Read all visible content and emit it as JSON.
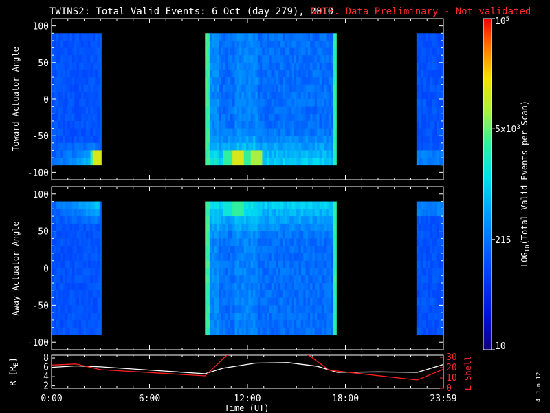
{
  "header": {
    "title": "TWINS2: Total Valid Events:  6 Oct (day 279), 2010",
    "note": "NOTE. Data Preliminary - Not validated"
  },
  "footer": {
    "date_stamp": "4 Jun 12"
  },
  "colors": {
    "background": "#000000",
    "axes": "#ffffff",
    "ephemeris_r": "#ffffff",
    "ephemeris_l": "#ff2020",
    "note_text": "#ff2a2a"
  },
  "chart_data": [
    {
      "type": "heatmap",
      "panel": "toward",
      "ylabel": "Toward Actuator Angle",
      "ylim": [
        -110,
        110
      ],
      "yticks": [
        "100",
        "50",
        "0",
        "-50",
        "-100"
      ],
      "xlim": [
        0,
        24
      ],
      "xticks": [
        "0:00",
        "6:00",
        "12:00",
        "18:00",
        "23:59"
      ],
      "angle_range": [
        -90,
        90
      ],
      "data_intervals": [
        {
          "start": 0.0,
          "end": 3.05,
          "flavor": "early"
        },
        {
          "start": 9.4,
          "end": 17.45,
          "flavor": "mid"
        },
        {
          "start": 22.35,
          "end": 24.0,
          "flavor": "late"
        }
      ],
      "hotspots": [
        {
          "time": 2.7,
          "angle": -85,
          "level": 0.62
        },
        {
          "time": 2.9,
          "angle": -85,
          "level": 0.78
        },
        {
          "time": 9.9,
          "angle": -80,
          "level": 0.5
        },
        {
          "time": 10.9,
          "angle": -80,
          "level": 0.62
        },
        {
          "time": 11.5,
          "angle": -83,
          "level": 0.78
        },
        {
          "time": 12.1,
          "angle": -80,
          "level": 0.62
        },
        {
          "time": 12.5,
          "angle": -85,
          "level": 0.72
        }
      ]
    },
    {
      "type": "heatmap",
      "panel": "away",
      "ylabel": "Away Actuator Angle",
      "ylim": [
        -110,
        110
      ],
      "yticks": [
        "100",
        "50",
        "0",
        "-50",
        "-100"
      ],
      "xlim": [
        0,
        24
      ],
      "xticks": [
        "0:00",
        "6:00",
        "12:00",
        "18:00",
        "23:59"
      ],
      "angle_range": [
        -90,
        90
      ],
      "data_intervals": [
        {
          "start": 0.0,
          "end": 3.05,
          "flavor": "early"
        },
        {
          "start": 9.4,
          "end": 17.45,
          "flavor": "mid"
        },
        {
          "start": 22.35,
          "end": 24.0,
          "flavor": "late"
        }
      ],
      "hotspots": [
        {
          "time": 10.9,
          "angle": 85,
          "level": 0.55
        },
        {
          "time": 11.5,
          "angle": 88,
          "level": 0.62
        },
        {
          "time": 12.2,
          "angle": 85,
          "level": 0.5
        },
        {
          "time": 10.2,
          "angle": 86,
          "level": 0.45
        }
      ]
    },
    {
      "type": "line",
      "panel": "ephemeris",
      "xlabel": "Time (UT)",
      "xlim": [
        0,
        24
      ],
      "xticks": [
        "0:00",
        "6:00",
        "12:00",
        "18:00",
        "23:59"
      ],
      "ylabel_left": "R [R",
      "ylabel_left_sub": "E",
      "ylabel_left_close": "]",
      "ylim_left": [
        1.5,
        8.6
      ],
      "yticks_left": [
        "8",
        "6",
        "4",
        "2"
      ],
      "ylabel_right": "L Shell",
      "ylim_right": [
        0,
        32
      ],
      "yticks_right": [
        "30",
        "20",
        "10",
        "0"
      ],
      "series": [
        {
          "axis": "left",
          "x": [
            0,
            1.5,
            3,
            9.4,
            10.5,
            12.5,
            14.5,
            16.3,
            17.5,
            20,
            22.4,
            24
          ],
          "y": [
            6.0,
            6.3,
            6.1,
            4.6,
            5.8,
            6.9,
            7.0,
            6.2,
            4.9,
            5.0,
            4.9,
            6.6
          ]
        },
        {
          "axis": "right",
          "x": [
            0,
            1.5,
            3,
            9.4,
            10.7,
            12.0,
            14.5,
            15.8,
            17.0,
            22.4,
            24
          ],
          "y": [
            22.5,
            23.5,
            18.0,
            12.0,
            31.5,
            40,
            40,
            31.5,
            17.5,
            8.0,
            18.5
          ]
        }
      ]
    },
    {
      "type": "colorbar",
      "label": "LOG10(Total Valid Events per Scan)",
      "label_main": "LOG",
      "label_sub": "10",
      "label_rest": "(Total Valid  Events per Scan)",
      "ticks": [
        {
          "text": "10",
          "pos": 0.0
        },
        {
          "text": "215",
          "pos": 0.333
        },
        {
          "text": "5x10^3",
          "pos": 0.667,
          "main": "5x10",
          "sup": "3"
        },
        {
          "text": "10^5",
          "pos": 1.0,
          "main": "10",
          "sup": "5"
        }
      ]
    }
  ]
}
